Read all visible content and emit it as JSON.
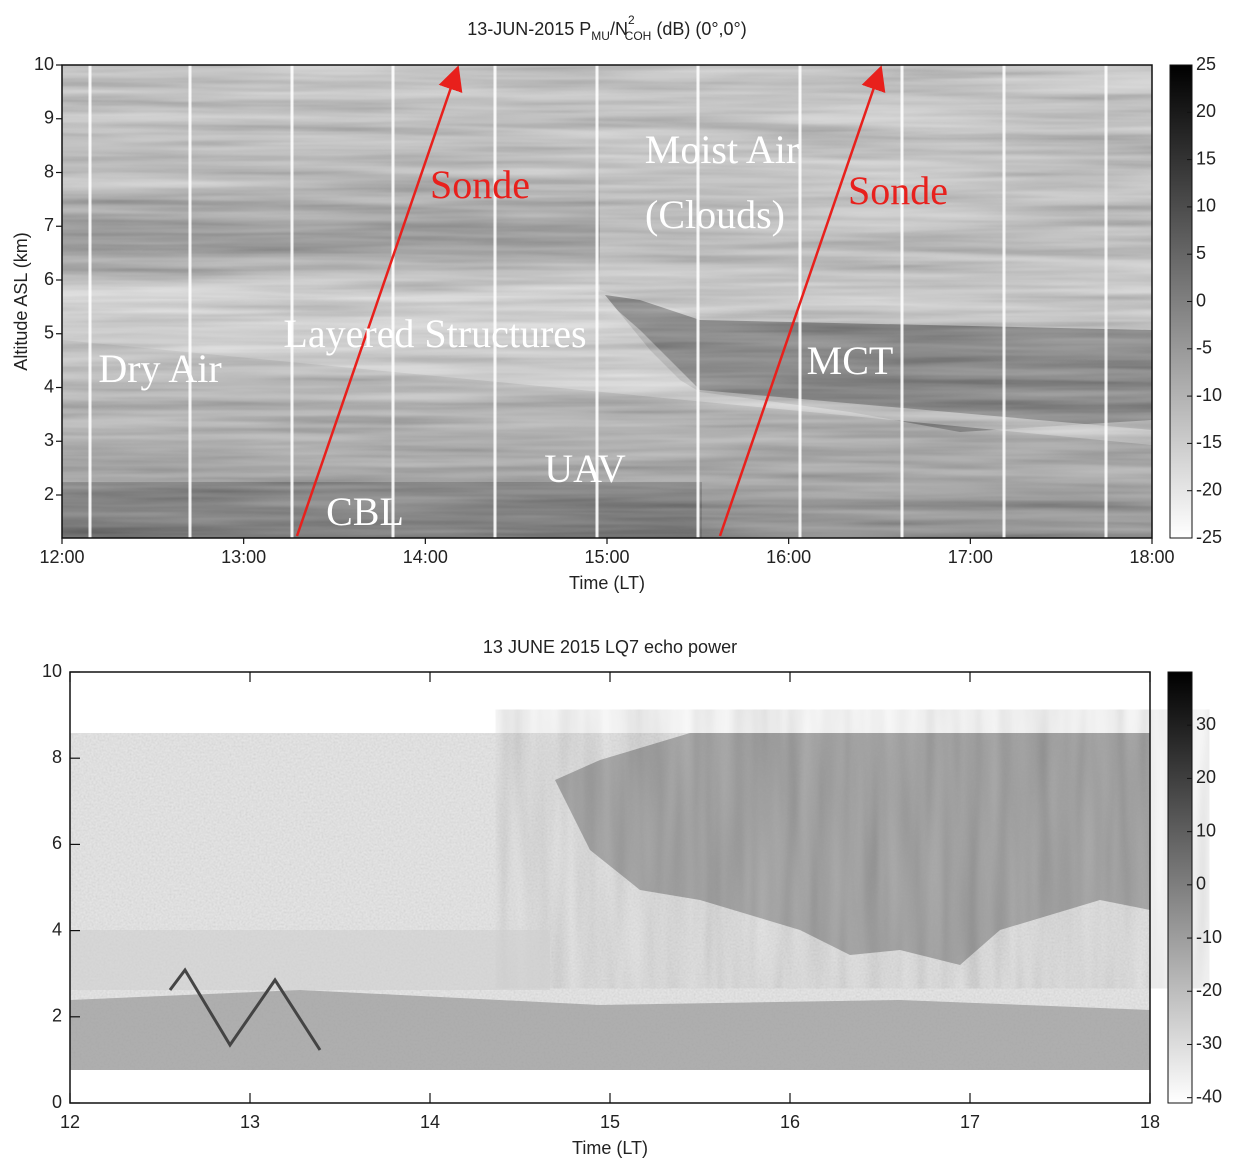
{
  "chart_data": [
    {
      "type": "heatmap",
      "title_parts": [
        "13-JUN-2015 P",
        "MU",
        "/N",
        "2",
        "COH",
        " (dB) (0°,0°)"
      ],
      "xlabel": "Time (LT)",
      "ylabel": "Altitude ASL (km)",
      "xlim": [
        12,
        18
      ],
      "xticks": [
        {
          "value": 12,
          "label": "12:00"
        },
        {
          "value": 13,
          "label": "13:00"
        },
        {
          "value": 14,
          "label": "14:00"
        },
        {
          "value": 15,
          "label": "15:00"
        },
        {
          "value": 16,
          "label": "16:00"
        },
        {
          "value": 17,
          "label": "17:00"
        },
        {
          "value": 18,
          "label": "18:00"
        }
      ],
      "ylim": [
        1.2,
        10
      ],
      "yticks": [
        2,
        3,
        4,
        5,
        6,
        7,
        8,
        9,
        10
      ],
      "clim": [
        -25,
        25
      ],
      "cticks": [
        -25,
        -20,
        -15,
        -10,
        -5,
        0,
        5,
        10,
        15,
        20,
        25
      ],
      "annotations": [
        {
          "text": "Dry Air",
          "color": "#ffffff"
        },
        {
          "text": "Layered Structures",
          "color": "#ffffff"
        },
        {
          "text": "CBL",
          "color": "#ffffff"
        },
        {
          "text": "UAV",
          "color": "#ffffff"
        },
        {
          "text": "Moist Air",
          "color": "#ffffff"
        },
        {
          "text": "(Clouds)",
          "color": "#ffffff"
        },
        {
          "text": "MCT",
          "color": "#ffffff"
        },
        {
          "text": "Sonde",
          "color": "#e8201c"
        },
        {
          "text": "Sonde",
          "color": "#e8201c"
        }
      ]
    },
    {
      "type": "heatmap",
      "title_parts": [
        "13 JUNE 2015 LQ7 echo power"
      ],
      "xlabel": "Time (LT)",
      "xlim": [
        12,
        18
      ],
      "xticks": [
        12,
        13,
        14,
        15,
        16,
        17,
        18
      ],
      "ylim": [
        0,
        10
      ],
      "yticks": [
        0,
        2,
        4,
        6,
        8,
        10
      ],
      "clim": [
        -41,
        40
      ],
      "cticks": [
        -40,
        -30,
        -20,
        -10,
        0,
        10,
        20,
        30
      ],
      "annotations": []
    }
  ]
}
